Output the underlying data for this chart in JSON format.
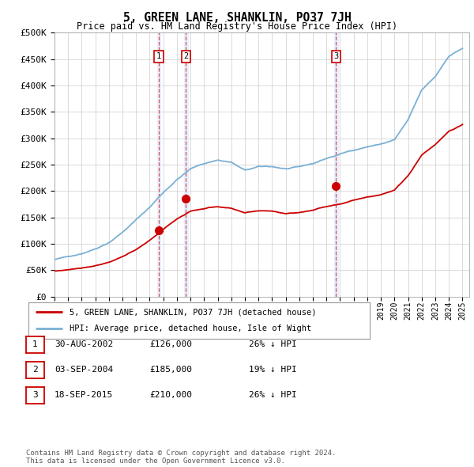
{
  "title": "5, GREEN LANE, SHANKLIN, PO37 7JH",
  "subtitle": "Price paid vs. HM Land Registry's House Price Index (HPI)",
  "ylim": [
    0,
    500000
  ],
  "yticks": [
    0,
    50000,
    100000,
    150000,
    200000,
    250000,
    300000,
    350000,
    400000,
    450000,
    500000
  ],
  "xlim_start": 1995.0,
  "xlim_end": 2025.5,
  "sale_color": "#cc0000",
  "hpi_color": "#7ab0d4",
  "transactions": [
    {
      "date_num": 2002.66,
      "price": 126000,
      "label": "1"
    },
    {
      "date_num": 2004.67,
      "price": 185000,
      "label": "2"
    },
    {
      "date_num": 2015.71,
      "price": 210000,
      "label": "3"
    }
  ],
  "legend_property_label": "5, GREEN LANE, SHANKLIN, PO37 7JH (detached house)",
  "legend_hpi_label": "HPI: Average price, detached house, Isle of Wight",
  "table_rows": [
    {
      "num": "1",
      "date": "30-AUG-2002",
      "price": "£126,000",
      "pct": "26% ↓ HPI"
    },
    {
      "num": "2",
      "date": "03-SEP-2004",
      "price": "£185,000",
      "pct": "19% ↓ HPI"
    },
    {
      "num": "3",
      "date": "18-SEP-2015",
      "price": "£210,000",
      "pct": "26% ↓ HPI"
    }
  ],
  "footnote": "Contains HM Land Registry data © Crown copyright and database right 2024.\nThis data is licensed under the Open Government Licence v3.0.",
  "background_color": "#ffffff",
  "grid_color": "#cccccc",
  "hpi_base_prices": [
    70000,
    75000,
    82000,
    92000,
    105000,
    125000,
    148000,
    172000,
    200000,
    225000,
    245000,
    255000,
    262000,
    258000,
    242000,
    248000,
    248000,
    244000,
    246000,
    252000,
    262000,
    270000,
    278000,
    285000,
    290000,
    298000,
    335000,
    390000,
    415000,
    455000,
    470000
  ],
  "prop_base_prices": [
    48000,
    51000,
    55000,
    60000,
    67000,
    78000,
    90000,
    107000,
    128000,
    148000,
    163000,
    168000,
    172000,
    168000,
    158000,
    162000,
    162000,
    158000,
    160000,
    165000,
    172000,
    178000,
    185000,
    192000,
    197000,
    205000,
    232000,
    272000,
    292000,
    318000,
    330000
  ]
}
